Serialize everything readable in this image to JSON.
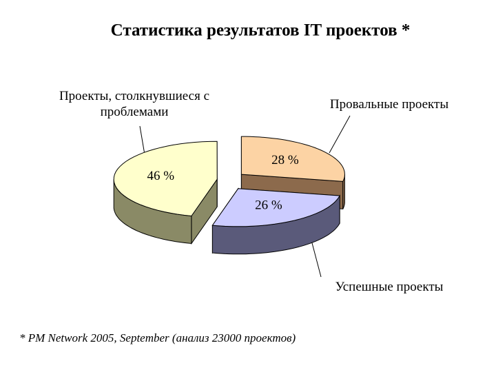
{
  "chart_data": {
    "type": "pie",
    "title": "Статистика результатов IT проектов *",
    "categories": [
      "Проекты, столкнувшиеся с проблемами",
      "Провальные проекты",
      "Успешные проекты"
    ],
    "values": [
      46,
      28,
      26
    ],
    "value_labels": [
      "46 %",
      "28 %",
      "26 %"
    ],
    "colors": [
      "#ffffcc",
      "#fcd3a4",
      "#ccccff"
    ],
    "side_colors": [
      "#8a8a66",
      "#8c6a4c",
      "#5a5a7a"
    ],
    "footnote": "* PM Network 2005, September  (анализ 23000 проектов)"
  }
}
